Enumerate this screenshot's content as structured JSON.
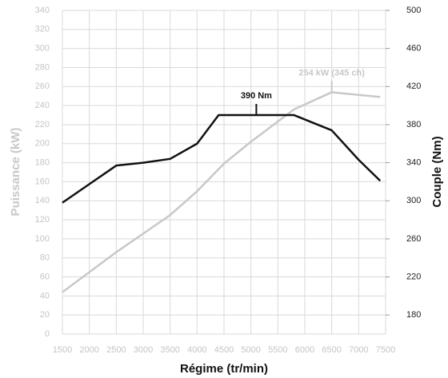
{
  "chart_data": {
    "type": "line",
    "x_label": "Régime (tr/min)",
    "y_label": "Puissance (kW)",
    "y2_label": "Couple (Nm)",
    "xlim": [
      1500,
      7500
    ],
    "xticks": [
      1500,
      2000,
      2500,
      3000,
      3500,
      4000,
      4500,
      5000,
      5500,
      6000,
      6500,
      7000,
      7500
    ],
    "ylim": [
      0,
      340
    ],
    "yticks": [
      0,
      20,
      40,
      60,
      80,
      100,
      120,
      140,
      160,
      180,
      200,
      220,
      240,
      260,
      280,
      300,
      320,
      340
    ],
    "y2lim": [
      160,
      500
    ],
    "y2ticks": [
      180,
      220,
      260,
      300,
      340,
      380,
      420,
      460,
      500
    ],
    "grid": true,
    "series": [
      {
        "name": "Puissance",
        "color": "#c8c8c8",
        "axis": "y",
        "peak_label": "254 kW (345 ch)",
        "x": [
          1500,
          2500,
          3500,
          4000,
          4500,
          5000,
          5800,
          6500,
          7400
        ],
        "values": [
          44,
          86,
          125,
          150,
          179,
          202,
          236,
          254,
          249
        ]
      },
      {
        "name": "Couple",
        "color": "#111111",
        "axis": "y2",
        "peak_label": "390 Nm",
        "x": [
          1500,
          2500,
          3000,
          3500,
          4000,
          4400,
          5800,
          6500,
          7000,
          7400
        ],
        "values": [
          298,
          337,
          340,
          344,
          360,
          390,
          390,
          374,
          343,
          321
        ]
      }
    ]
  }
}
